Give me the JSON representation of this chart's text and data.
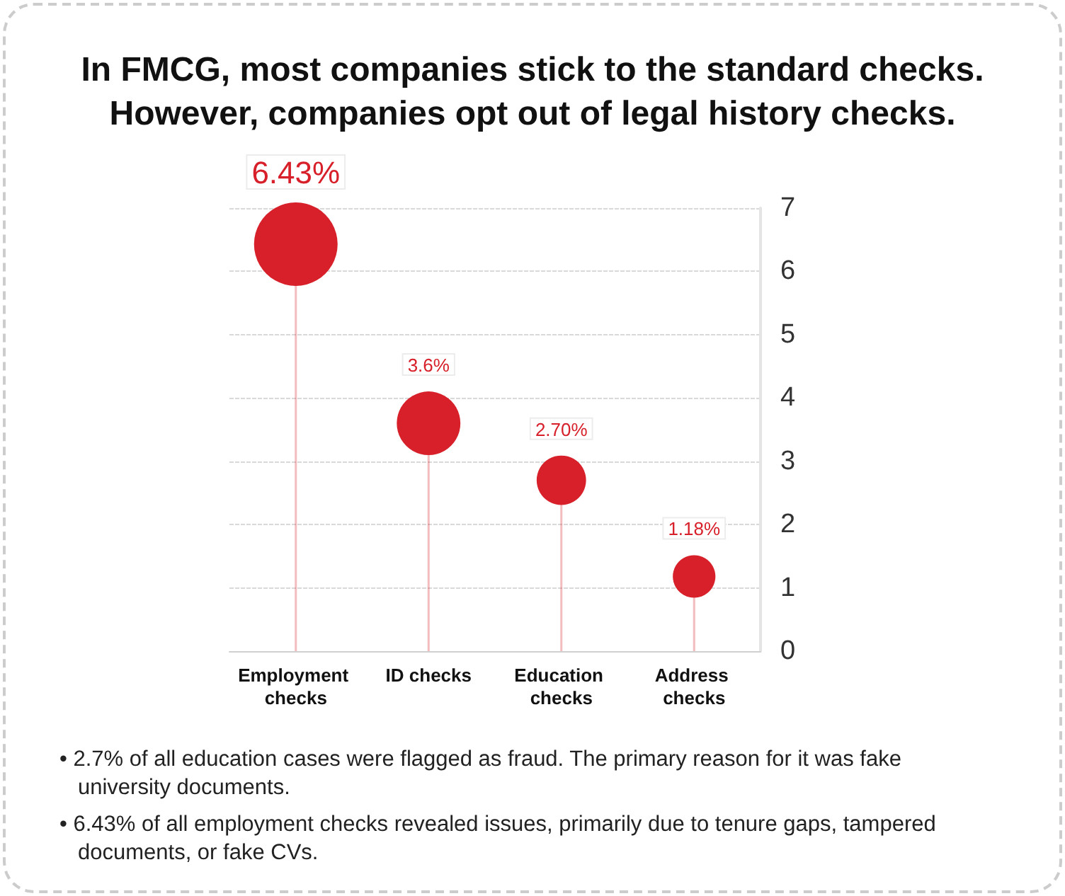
{
  "chart_data": {
    "type": "lollipop",
    "title": "In FMCG, most companies stick to the standard checks.\nHowever, companies opt out of legal history checks.",
    "categories": [
      "Employment checks",
      "ID checks",
      "Education checks",
      "Address checks"
    ],
    "values": [
      6.43,
      3.6,
      2.7,
      1.18
    ],
    "value_labels": [
      "6.43%",
      "3.6%",
      "2.70%",
      "1.18%"
    ],
    "sizes": [
      1,
      0.58,
      0.35,
      0.26
    ],
    "color": "#d7202a",
    "ylim": [
      0,
      7
    ],
    "yticks": [
      0,
      1,
      2,
      3,
      4,
      5,
      6,
      7
    ],
    "grid": "y",
    "marker": "circle",
    "annotations": [
      "• 2.7% of all education cases were flagged as fraud. The primary reason for it was fake university documents.",
      "• 6.43% of all employment checks revealed issues, primarily due to tenure gaps, tampered documents, or fake CVs."
    ]
  }
}
